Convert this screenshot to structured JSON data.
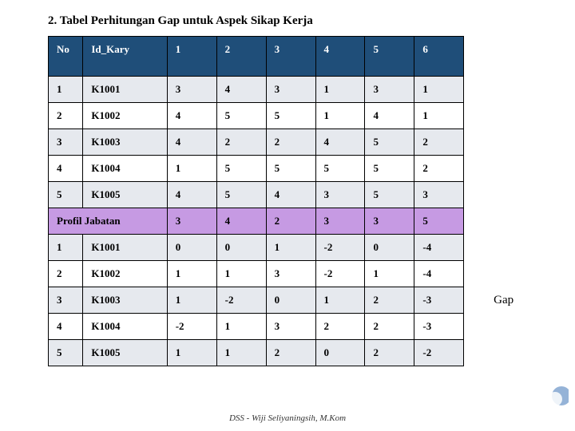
{
  "title": "2. Tabel Perhitungan Gap untuk Aspek Sikap Kerja",
  "footer": "DSS - Wiji Seliyaningsih, M.Kom",
  "columns": [
    "No",
    "Id_Kary",
    "1",
    "2",
    "3",
    "4",
    "5",
    "6"
  ],
  "gap_label": "Gap",
  "header_bg": "#1f4e79",
  "header_fg": "#ffffff",
  "band_a": "#e6e9ee",
  "band_b": "#ffffff",
  "profil_bg": "#c69ae3",
  "top_rows": [
    {
      "no": "1",
      "id": "K1001",
      "v": [
        "3",
        "4",
        "3",
        "1",
        "3",
        "1"
      ]
    },
    {
      "no": "2",
      "id": "K1002",
      "v": [
        "4",
        "5",
        "5",
        "1",
        "4",
        "1"
      ]
    },
    {
      "no": "3",
      "id": "K1003",
      "v": [
        "4",
        "2",
        "2",
        "4",
        "5",
        "2"
      ]
    },
    {
      "no": "4",
      "id": "K1004",
      "v": [
        "1",
        "5",
        "5",
        "5",
        "5",
        "2"
      ]
    },
    {
      "no": "5",
      "id": "K1005",
      "v": [
        "4",
        "5",
        "4",
        "3",
        "5",
        "3"
      ]
    }
  ],
  "profil_label": "Profil Jabatan",
  "profil_values": [
    "3",
    "4",
    "2",
    "3",
    "3",
    "5"
  ],
  "bottom_rows": [
    {
      "no": "1",
      "id": "K1001",
      "v": [
        "0",
        "0",
        "1",
        "-2",
        "0",
        "-4"
      ]
    },
    {
      "no": "2",
      "id": "K1002",
      "v": [
        "1",
        "1",
        "3",
        "-2",
        "1",
        "-4"
      ]
    },
    {
      "no": "3",
      "id": "K1003",
      "v": [
        "1",
        "-2",
        "0",
        "1",
        "2",
        "-3"
      ]
    },
    {
      "no": "4",
      "id": "K1004",
      "v": [
        "-2",
        "1",
        "3",
        "2",
        "2",
        "-3"
      ]
    },
    {
      "no": "5",
      "id": "K1005",
      "v": [
        "1",
        "1",
        "2",
        "0",
        "2",
        "-2"
      ]
    }
  ]
}
